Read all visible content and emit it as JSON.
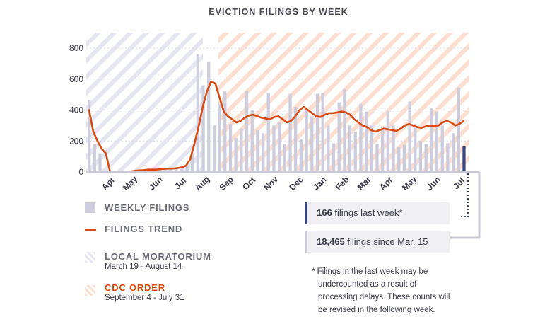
{
  "title": "EVICTION FILINGS BY WEEK",
  "colors": {
    "bars": "#cdcdde",
    "last_bar": "#3a4682",
    "trend": "#d94a12",
    "moratorium_hatch": "#e6e6f2",
    "cdc_hatch": "#fcdfd0"
  },
  "chart_data": {
    "type": "bar",
    "title": "EVICTION FILINGS BY WEEK",
    "ylim": [
      0,
      850
    ],
    "yticks": [
      0,
      200,
      400,
      600,
      800
    ],
    "x_month_labels": [
      "Apr",
      "May",
      "Jun",
      "Jul",
      "Aug",
      "Sep",
      "Oct",
      "Nov",
      "Dec",
      "Jan",
      "Feb",
      "Mar",
      "Apr",
      "May",
      "Jun",
      "Jul"
    ],
    "series": [
      {
        "name": "WEEKLY FILINGS",
        "values": [
          465,
          180,
          120,
          0,
          0,
          0,
          5,
          5,
          5,
          8,
          10,
          12,
          15,
          18,
          15,
          20,
          25,
          30,
          35,
          120,
          760,
          560,
          710,
          300,
          440,
          520,
          310,
          220,
          280,
          525,
          400,
          270,
          250,
          510,
          300,
          320,
          180,
          505,
          420,
          210,
          400,
          360,
          505,
          510,
          300,
          185,
          450,
          535,
          300,
          260,
          440,
          390,
          300,
          180,
          295,
          395,
          300,
          160,
          175,
          455,
          310,
          200,
          180,
          410,
          390,
          300,
          185,
          250,
          545,
          166
        ],
        "last_value_highlighted": true
      },
      {
        "name": "FILINGS TREND",
        "values": [
          400,
          260,
          200,
          150,
          120,
          0,
          0,
          0,
          0,
          0,
          3,
          8,
          10,
          12,
          15,
          15,
          15,
          18,
          20,
          22,
          22,
          25,
          30,
          40,
          80,
          180,
          290,
          420,
          520,
          585,
          570,
          480,
          390,
          360,
          340,
          320,
          330,
          350,
          365,
          370,
          360,
          350,
          345,
          340,
          355,
          360,
          340,
          320,
          330,
          360,
          400,
          420,
          400,
          380,
          360,
          355,
          370,
          380,
          380,
          385,
          390,
          385,
          370,
          340,
          320,
          300,
          290,
          270,
          260,
          270,
          280,
          275,
          270,
          265,
          280,
          300,
          310,
          300,
          290,
          285,
          295,
          300,
          295,
          300,
          320,
          330,
          320,
          300,
          310,
          330
        ]
      }
    ],
    "periods": [
      {
        "name": "LOCAL MORATORIUM",
        "dates": "March 19 - August 14"
      },
      {
        "name": "CDC ORDER",
        "dates": "September 4 - July 31"
      }
    ]
  },
  "legend": {
    "weekly_filings": "WEEKLY FILINGS",
    "filings_trend": "FILINGS TREND",
    "local_moratorium": "LOCAL MORATORIUM",
    "local_moratorium_dates": "March 19 - August 14",
    "cdc_order": "CDC ORDER",
    "cdc_order_dates": "September 4 - July 31"
  },
  "stats": {
    "last_week_value": "166",
    "last_week_text": " filings last week*",
    "since_value": "18,465",
    "since_text": " filings since Mar. 15"
  },
  "footnote": {
    "line1": "* Filings in the last week may be",
    "line2": "undercounted as a result of",
    "line3": "processing delays. These counts will",
    "line4": "be revised in the following week."
  }
}
